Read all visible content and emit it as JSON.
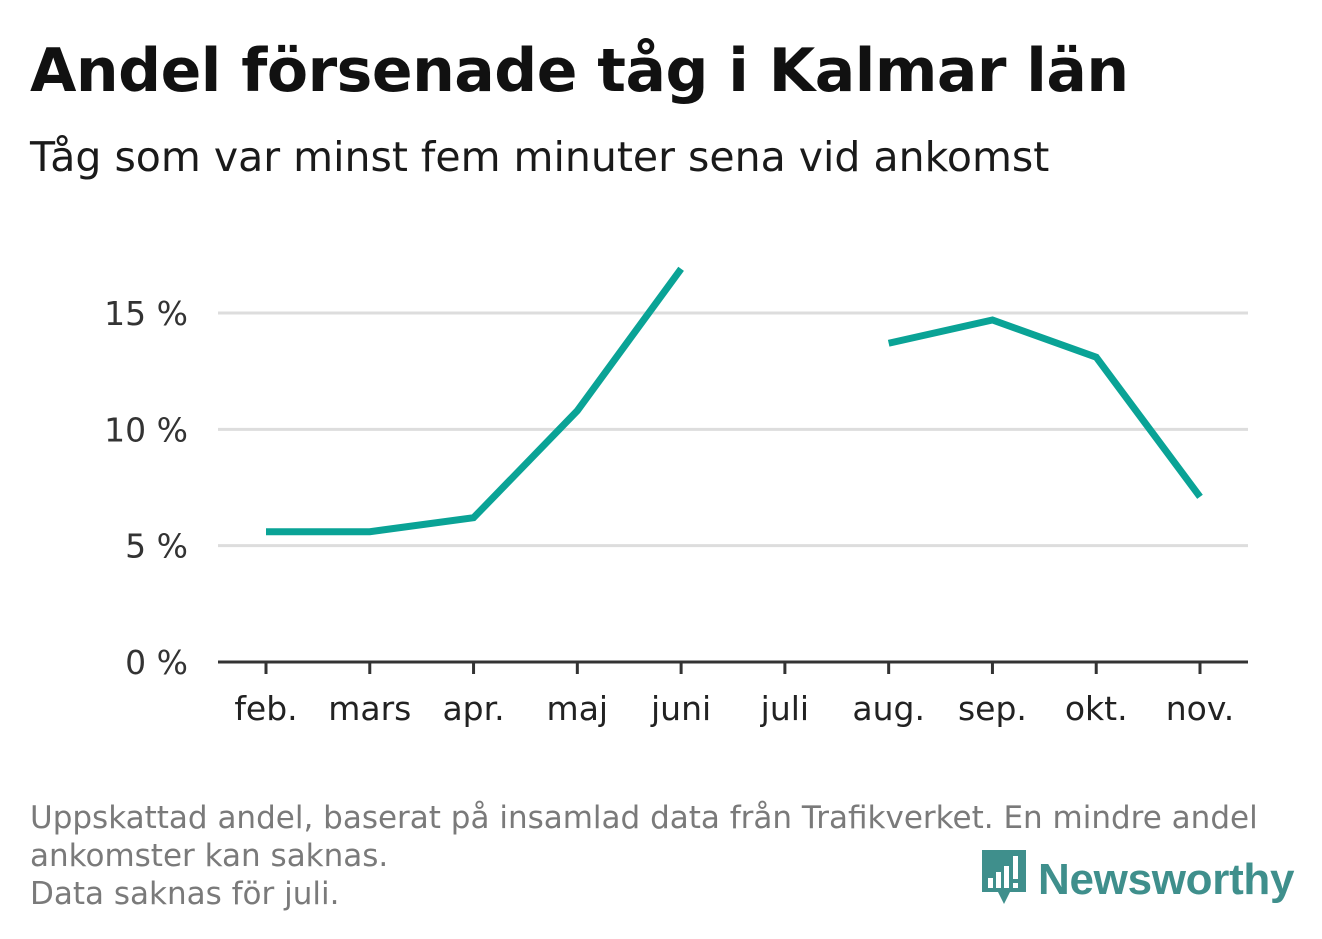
{
  "title": "Andel försenade tåg i Kalmar län",
  "subtitle": "Tåg som var minst fem minuter sena vid ankomst",
  "footnote": {
    "line1": "Uppskattad andel, baserat på insamlad data från Trafikverket. En mindre andel",
    "line2": "ankomster kan saknas.",
    "line3": "Data saknas för juli."
  },
  "brand": {
    "name": "Newsworthy",
    "color": "#3f8f8c",
    "icon": "newsworthy-logo-icon"
  },
  "chart_data": {
    "type": "line",
    "categories": [
      "feb.",
      "mars",
      "apr.",
      "maj",
      "juni",
      "juli",
      "aug.",
      "sep.",
      "okt.",
      "nov."
    ],
    "series": [
      {
        "values": [
          5.6,
          5.6,
          6.2,
          10.8,
          16.9,
          null,
          13.7,
          14.7,
          13.1,
          7.1
        ],
        "color": "#0aa396"
      }
    ],
    "yticks": [
      0,
      5,
      10,
      15
    ],
    "ytick_labels": [
      "0 %",
      "5 %",
      "10 %",
      "15 %"
    ],
    "ylim": [
      0,
      17
    ],
    "grid": true,
    "gridline_color": "#dddddd",
    "axis_color": "#333333"
  }
}
